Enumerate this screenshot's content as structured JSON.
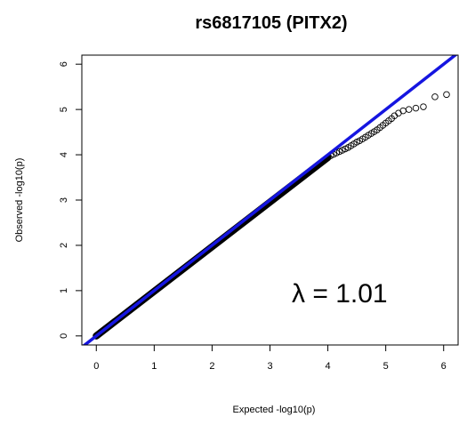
{
  "chart_data": {
    "type": "scatter",
    "title": "rs6817105 (PITX2)",
    "xlabel": "Expected -log10(p)",
    "ylabel": "Observed -log10(p)",
    "xlim": [
      -0.25,
      6.25
    ],
    "ylim": [
      -0.2,
      6.2
    ],
    "xticks": [
      "0",
      "1",
      "2",
      "3",
      "4",
      "5",
      "6"
    ],
    "yticks": [
      "0",
      "1",
      "2",
      "3",
      "4",
      "5",
      "6"
    ],
    "annotation": "λ = 1.01",
    "reference_line": {
      "slope": 1,
      "intercept": 0,
      "color": "#1515e0"
    },
    "point_color": "#000000",
    "dense_segment": {
      "x_start": 0.0,
      "x_end": 4.0,
      "slope": 0.985
    },
    "points": [
      {
        "x": 4.05,
        "y": 3.98
      },
      {
        "x": 4.1,
        "y": 4.01
      },
      {
        "x": 4.15,
        "y": 4.04
      },
      {
        "x": 4.2,
        "y": 4.07
      },
      {
        "x": 4.25,
        "y": 4.1
      },
      {
        "x": 4.3,
        "y": 4.13
      },
      {
        "x": 4.35,
        "y": 4.16
      },
      {
        "x": 4.4,
        "y": 4.2
      },
      {
        "x": 4.45,
        "y": 4.24
      },
      {
        "x": 4.5,
        "y": 4.28
      },
      {
        "x": 4.55,
        "y": 4.31
      },
      {
        "x": 4.6,
        "y": 4.35
      },
      {
        "x": 4.65,
        "y": 4.39
      },
      {
        "x": 4.7,
        "y": 4.43
      },
      {
        "x": 4.75,
        "y": 4.47
      },
      {
        "x": 4.8,
        "y": 4.51
      },
      {
        "x": 4.85,
        "y": 4.55
      },
      {
        "x": 4.9,
        "y": 4.6
      },
      {
        "x": 4.95,
        "y": 4.65
      },
      {
        "x": 5.0,
        "y": 4.7
      },
      {
        "x": 5.05,
        "y": 4.75
      },
      {
        "x": 5.1,
        "y": 4.8
      },
      {
        "x": 5.15,
        "y": 4.86
      },
      {
        "x": 5.22,
        "y": 4.92
      },
      {
        "x": 5.3,
        "y": 4.97
      },
      {
        "x": 5.4,
        "y": 5.0
      },
      {
        "x": 5.52,
        "y": 5.03
      },
      {
        "x": 5.65,
        "y": 5.06
      },
      {
        "x": 5.85,
        "y": 5.28
      },
      {
        "x": 6.05,
        "y": 5.33
      }
    ]
  }
}
